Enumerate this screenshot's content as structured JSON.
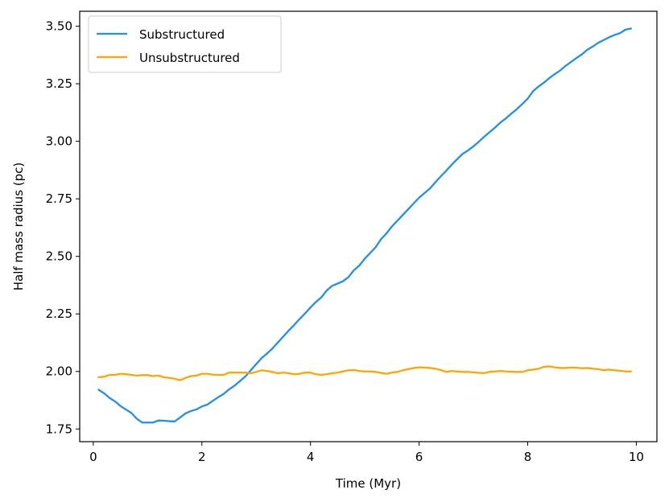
{
  "chart_data": {
    "type": "line",
    "title": "",
    "xlabel": "Time (Myr)",
    "ylabel": "Half mass radius (pc)",
    "xlim": [
      -0.25,
      10.38
    ],
    "ylim": [
      1.695,
      3.565
    ],
    "x_ticks": [
      0,
      2,
      4,
      6,
      8,
      10
    ],
    "y_ticks": [
      1.75,
      2.0,
      2.25,
      2.5,
      2.75,
      3.0,
      3.25,
      3.5
    ],
    "x_tick_labels": [
      "0",
      "2",
      "4",
      "6",
      "8",
      "10"
    ],
    "y_tick_labels": [
      "1.75",
      "2.00",
      "2.25",
      "2.50",
      "2.75",
      "3.00",
      "3.25",
      "3.50"
    ],
    "grid": false,
    "legend_position": "upper-left",
    "series": [
      {
        "name": "Substructured",
        "color": "#1f8ff0",
        "x": [
          0.1,
          0.2,
          0.3,
          0.4,
          0.5,
          0.6,
          0.7,
          0.8,
          0.9,
          1.0,
          1.1,
          1.2,
          1.3,
          1.4,
          1.5,
          1.6,
          1.7,
          1.8,
          1.9,
          2.0,
          2.1,
          2.2,
          2.3,
          2.4,
          2.5,
          2.6,
          2.7,
          2.8,
          2.9,
          3.0,
          3.1,
          3.2,
          3.3,
          3.4,
          3.5,
          3.6,
          3.7,
          3.8,
          3.9,
          4.0,
          4.1,
          4.2,
          4.3,
          4.4,
          4.5,
          4.6,
          4.7,
          4.8,
          4.9,
          5.0,
          5.1,
          5.2,
          5.3,
          5.4,
          5.5,
          5.6,
          5.7,
          5.8,
          5.9,
          6.0,
          6.1,
          6.2,
          6.3,
          6.4,
          6.5,
          6.6,
          6.7,
          6.8,
          6.9,
          7.0,
          7.1,
          7.2,
          7.3,
          7.4,
          7.5,
          7.6,
          7.7,
          7.8,
          7.9,
          8.0,
          8.1,
          8.2,
          8.3,
          8.4,
          8.5,
          8.6,
          8.7,
          8.8,
          8.9,
          9.0,
          9.1,
          9.2,
          9.3,
          9.4,
          9.5,
          9.6,
          9.7,
          9.8,
          9.9
        ],
        "values": [
          1.92,
          1.905,
          1.885,
          1.87,
          1.85,
          1.835,
          1.82,
          1.795,
          1.778,
          1.778,
          1.778,
          1.787,
          1.786,
          1.784,
          1.783,
          1.8,
          1.818,
          1.828,
          1.835,
          1.848,
          1.856,
          1.872,
          1.888,
          1.902,
          1.922,
          1.938,
          1.958,
          1.978,
          2.005,
          2.032,
          2.058,
          2.078,
          2.1,
          2.126,
          2.152,
          2.178,
          2.202,
          2.228,
          2.252,
          2.278,
          2.302,
          2.322,
          2.352,
          2.372,
          2.382,
          2.392,
          2.41,
          2.44,
          2.46,
          2.49,
          2.515,
          2.54,
          2.575,
          2.6,
          2.63,
          2.655,
          2.68,
          2.705,
          2.73,
          2.755,
          2.775,
          2.795,
          2.822,
          2.848,
          2.872,
          2.898,
          2.922,
          2.945,
          2.96,
          2.978,
          2.998,
          3.02,
          3.04,
          3.06,
          3.082,
          3.1,
          3.12,
          3.14,
          3.162,
          3.185,
          3.218,
          3.238,
          3.255,
          3.275,
          3.292,
          3.308,
          3.328,
          3.345,
          3.362,
          3.378,
          3.398,
          3.412,
          3.428,
          3.44,
          3.452,
          3.462,
          3.47,
          3.485,
          3.49
        ]
      },
      {
        "name": "Unsubstructured",
        "color": "#ffa500",
        "x": [
          0.1,
          0.2,
          0.3,
          0.4,
          0.5,
          0.6,
          0.7,
          0.8,
          0.9,
          1.0,
          1.1,
          1.2,
          1.3,
          1.4,
          1.5,
          1.6,
          1.7,
          1.8,
          1.9,
          2.0,
          2.1,
          2.2,
          2.3,
          2.4,
          2.5,
          2.6,
          2.7,
          2.8,
          2.9,
          3.0,
          3.1,
          3.2,
          3.3,
          3.4,
          3.5,
          3.6,
          3.7,
          3.8,
          3.9,
          4.0,
          4.1,
          4.2,
          4.3,
          4.4,
          4.5,
          4.6,
          4.7,
          4.8,
          4.9,
          5.0,
          5.1,
          5.2,
          5.3,
          5.4,
          5.5,
          5.6,
          5.7,
          5.8,
          5.9,
          6.0,
          6.1,
          6.2,
          6.3,
          6.4,
          6.5,
          6.6,
          6.7,
          6.8,
          6.9,
          7.0,
          7.1,
          7.2,
          7.3,
          7.4,
          7.5,
          7.6,
          7.7,
          7.8,
          7.9,
          8.0,
          8.1,
          8.2,
          8.3,
          8.4,
          8.5,
          8.6,
          8.7,
          8.8,
          8.9,
          9.0,
          9.1,
          9.2,
          9.3,
          9.4,
          9.5,
          9.6,
          9.7,
          9.8,
          9.9
        ],
        "values": [
          1.975,
          1.977,
          1.985,
          1.985,
          1.99,
          1.988,
          1.985,
          1.982,
          1.984,
          1.984,
          1.98,
          1.982,
          1.975,
          1.972,
          1.968,
          1.962,
          1.972,
          1.98,
          1.982,
          1.99,
          1.99,
          1.986,
          1.985,
          1.985,
          1.995,
          1.995,
          1.995,
          1.995,
          1.992,
          1.998,
          2.005,
          2.002,
          1.998,
          1.992,
          1.995,
          1.992,
          1.988,
          1.99,
          1.995,
          1.995,
          1.988,
          1.985,
          1.988,
          1.992,
          1.995,
          2.0,
          2.005,
          2.006,
          2.002,
          2.0,
          2.0,
          1.998,
          1.994,
          1.99,
          1.995,
          1.998,
          2.005,
          2.01,
          2.015,
          2.018,
          2.017,
          2.015,
          2.012,
          2.006,
          1.998,
          2.002,
          2.0,
          1.998,
          1.998,
          1.996,
          1.994,
          1.993,
          1.998,
          2.0,
          2.002,
          2.0,
          1.999,
          1.998,
          1.998,
          2.005,
          2.008,
          2.012,
          2.02,
          2.022,
          2.018,
          2.015,
          2.015,
          2.017,
          2.016,
          2.014,
          2.015,
          2.012,
          2.01,
          2.005,
          2.008,
          2.005,
          2.003,
          2.0,
          2.0
        ]
      }
    ]
  }
}
